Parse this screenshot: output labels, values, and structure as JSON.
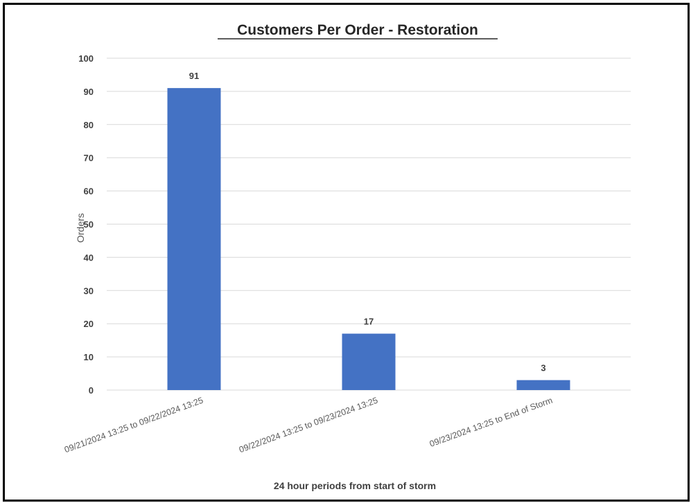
{
  "chart_data": {
    "type": "bar",
    "title": "Customers Per Order - Restoration",
    "xlabel": "24 hour periods from start of storm",
    "ylabel": "Orders",
    "categories": [
      "09/21/2024 13:25 to 09/22/2024 13:25",
      "09/22/2024 13:25 to 09/23/2024 13:25",
      "09/23/2024 13:25 to End of Storm"
    ],
    "values": [
      91,
      17,
      3
    ],
    "ylim": [
      0,
      100
    ],
    "yticks": [
      0,
      10,
      20,
      30,
      40,
      50,
      60,
      70,
      80,
      90,
      100
    ],
    "grid": true,
    "bar_color": "#4472C4",
    "grid_color": "#d9d9d9"
  }
}
